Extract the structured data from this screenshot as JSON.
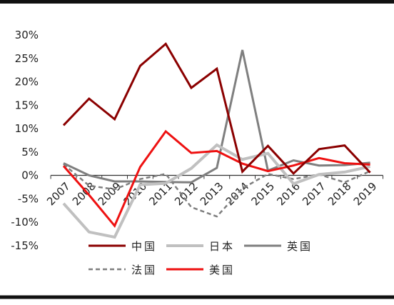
{
  "chart_data": {
    "type": "line",
    "x": [
      "2007",
      "2008",
      "2009",
      "2010",
      "2011",
      "2012",
      "2013",
      "2014",
      "2015",
      "2016",
      "2017",
      "2018",
      "2019"
    ],
    "ylim": [
      -15,
      30
    ],
    "yticks": [
      30,
      25,
      20,
      15,
      10,
      5,
      0,
      -5,
      -10,
      -15
    ],
    "ytick_labels": [
      "30%",
      "25%",
      "20%",
      "15%",
      "10%",
      "5%",
      "0%",
      "-5%",
      "-10%",
      "-15%"
    ],
    "grid": false,
    "legend": "bottom",
    "series": [
      {
        "name": "中国",
        "color": "#8b0000",
        "dash": "solid",
        "width": 3,
        "values": [
          10.7,
          16.4,
          12.0,
          23.4,
          28.1,
          18.7,
          22.8,
          0.8,
          6.3,
          0.4,
          5.6,
          6.4,
          0.6
        ]
      },
      {
        "name": "日本",
        "color": "#c0c0c0",
        "dash": "solid",
        "width": 4,
        "values": [
          -6.0,
          -12.1,
          -13.2,
          -2.0,
          -1.7,
          1.5,
          6.5,
          3.4,
          4.7,
          -1.8,
          0.2,
          0.7,
          1.9
        ]
      },
      {
        "name": "英国",
        "color": "#7f7f7f",
        "dash": "solid",
        "width": 3,
        "values": [
          2.6,
          0.0,
          -1.3,
          -1.3,
          -1.4,
          -1.5,
          1.6,
          26.8,
          1.0,
          3.2,
          2.1,
          2.2,
          2.7
        ]
      },
      {
        "name": "法国",
        "color": "#7f7f7f",
        "dash": "dashed",
        "width": 2.5,
        "values": [
          2.4,
          -2.2,
          -3.0,
          -0.8,
          0.3,
          -6.8,
          -8.8,
          -2.8,
          0.3,
          -0.8,
          0.2,
          -1.5,
          0.9
        ]
      },
      {
        "name": "美国",
        "color": "#ee1111",
        "dash": "solid",
        "width": 3,
        "values": [
          2.0,
          -4.2,
          -10.8,
          1.8,
          9.4,
          4.8,
          5.2,
          2.5,
          0.9,
          2.1,
          3.7,
          2.6,
          2.3
        ]
      }
    ]
  }
}
